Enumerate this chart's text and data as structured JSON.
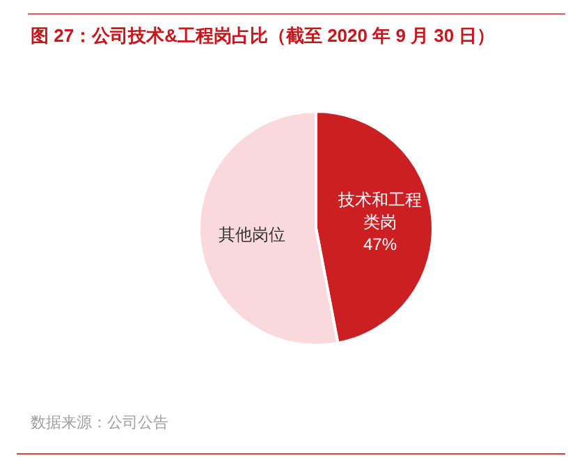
{
  "chart_data": {
    "type": "pie",
    "title": "图 27：公司技术&工程岗占比（截至 2020 年 9 月 30 日）",
    "categories": [
      "技术和工程类岗",
      "其他岗位"
    ],
    "values": [
      47,
      53
    ],
    "colors": [
      "#cc1f24",
      "#f9d9db"
    ],
    "value_labels": [
      "47%",
      null
    ],
    "annotations": [
      "数据来源：公司公告"
    ],
    "legend": false
  }
}
